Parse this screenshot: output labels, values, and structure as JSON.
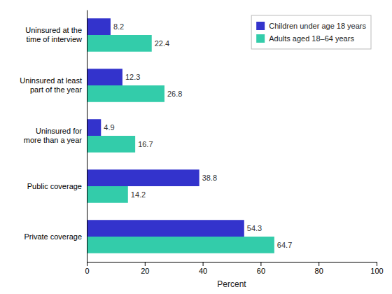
{
  "chart_data": {
    "type": "bar",
    "orientation": "horizontal",
    "categories": [
      "Uninsured at the\ntime of interview",
      "Uninsured at least\npart of the year",
      "Uninsured for\nmore than a year",
      "Public coverage",
      "Private coverage"
    ],
    "series": [
      {
        "name": "Children under age 18 years",
        "color": "#3333cc",
        "values": [
          8.2,
          12.3,
          4.9,
          38.8,
          54.3
        ]
      },
      {
        "name": "Adults aged 18–64 years",
        "color": "#33ccaa",
        "values": [
          22.4,
          26.8,
          16.7,
          14.2,
          64.7
        ]
      }
    ],
    "xlabel": "Percent",
    "xlim": [
      0,
      100
    ],
    "xticks": [
      0,
      20,
      40,
      60,
      80,
      100
    ],
    "data_labels": true,
    "legend": "upper right",
    "grid": false
  }
}
